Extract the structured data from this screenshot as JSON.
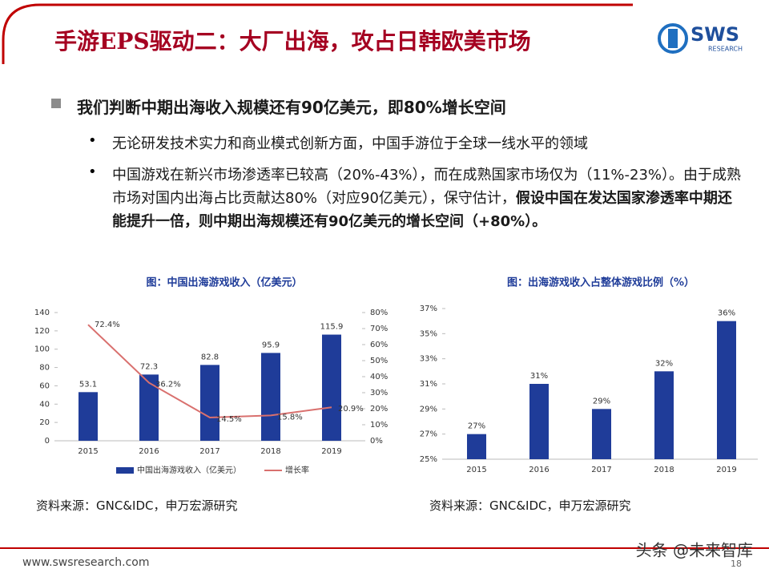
{
  "header": {
    "title": "手游EPS驱动二：大厂出海，攻占日韩欧美市场",
    "logo": "SWS",
    "logo_sub": "RESEARCH"
  },
  "heading": "我们判断中期出海收入规模还有90亿美元，即80%增长空间",
  "bullets": [
    {
      "text": "无论研发技术实力和商业模式创新方面，中国手游位于全球一线水平的领域"
    },
    {
      "text": "中国游戏在新兴市场渗透率已较高（20%-43%），而在成熟国家市场仅为（11%-23%）。由于成熟市场对国内出海占比贡献达80%（对应90亿美元），保守估计，",
      "bold": "假设中国在发达国家渗透率中期还能提升一倍，则中期出海规模还有90亿美元的增长空间（+80%）。"
    }
  ],
  "chart_data": [
    {
      "type": "bar",
      "title": "图：中国出海游戏收入（亿美元）",
      "categories": [
        "2015",
        "2016",
        "2017",
        "2018",
        "2019"
      ],
      "series": [
        {
          "name": "中国出海游戏收入（亿美元）",
          "type": "bar",
          "color": "#1f3c99",
          "values": [
            53.1,
            72.3,
            82.8,
            95.9,
            115.9
          ]
        },
        {
          "name": "增长率",
          "type": "line",
          "axis": "y2",
          "color": "#d9706e",
          "values": [
            72.4,
            36.2,
            14.5,
            15.8,
            20.9
          ],
          "value_labels": [
            "72.4%",
            "36.2%",
            "14.5%",
            "15.8%",
            "20.9%"
          ]
        }
      ],
      "ylim": [
        0,
        140
      ],
      "yticks": [
        0,
        20,
        40,
        60,
        80,
        100,
        120,
        140
      ],
      "y2lim": [
        0,
        80
      ],
      "y2ticks": [
        {
          "value": 0,
          "label": "0%"
        },
        {
          "value": 10,
          "label": "10%"
        },
        {
          "value": 20,
          "label": "20%"
        },
        {
          "value": 30,
          "label": "30%"
        },
        {
          "value": 40,
          "label": "40%"
        },
        {
          "value": 50,
          "label": "50%"
        },
        {
          "value": 60,
          "label": "60%"
        },
        {
          "value": 70,
          "label": "70%"
        },
        {
          "value": 80,
          "label": "80%"
        }
      ],
      "grid": false,
      "legend": "bottom"
    },
    {
      "type": "bar",
      "title": "图：出海游戏收入占整体游戏比例（%）",
      "categories": [
        "2015",
        "2016",
        "2017",
        "2018",
        "2019"
      ],
      "values": [
        27,
        31,
        29,
        32,
        36
      ],
      "value_labels": [
        "27%",
        "31%",
        "29%",
        "32%",
        "36%"
      ],
      "color": "#1f3c99",
      "ylim": [
        25,
        37
      ],
      "yticks": [
        {
          "value": 25,
          "label": "25%"
        },
        {
          "value": 27,
          "label": "27%"
        },
        {
          "value": 29,
          "label": "29%"
        },
        {
          "value": 31,
          "label": "31%"
        },
        {
          "value": 33,
          "label": "33%"
        },
        {
          "value": 35,
          "label": "35%"
        },
        {
          "value": 37,
          "label": "37%"
        }
      ],
      "grid": false
    }
  ],
  "sources": [
    "资料来源：GNC&IDC，申万宏源研究",
    "资料来源：GNC&IDC，申万宏源研究"
  ],
  "footer": {
    "url": "www.swsresearch.com",
    "page": "18",
    "watermark": "头条 @未来智库"
  }
}
